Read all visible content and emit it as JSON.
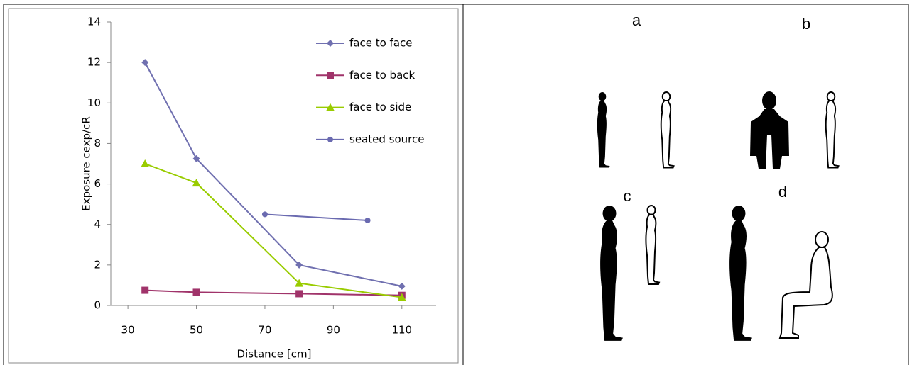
{
  "chart_data": {
    "type": "line",
    "xlabel": "Distance [cm]",
    "ylabel": "Exposure cexp/cR",
    "xlim": [
      25,
      120
    ],
    "xticks": [
      30,
      50,
      70,
      90,
      110
    ],
    "ylim": [
      0,
      14
    ],
    "yticks": [
      0,
      2,
      4,
      6,
      8,
      10,
      12,
      14
    ],
    "legend": "upper right",
    "series": [
      {
        "name": "face to face",
        "color": "#7070b0",
        "marker": "diamond",
        "x": [
          35,
          50,
          80,
          110
        ],
        "values": [
          12,
          7.25,
          2,
          0.95
        ]
      },
      {
        "name": "face to back",
        "color": "#a0336a",
        "marker": "square",
        "x": [
          35,
          50,
          80,
          110
        ],
        "values": [
          0.75,
          0.65,
          0.58,
          0.5
        ]
      },
      {
        "name": "face to side",
        "color": "#99cc00",
        "marker": "triangle",
        "x": [
          35,
          50,
          80,
          110
        ],
        "values": [
          7,
          6.05,
          1.1,
          0.4
        ]
      },
      {
        "name": "seated source",
        "color": "#6a6ab0",
        "marker": "circle",
        "x": [
          70,
          100
        ],
        "values": [
          4.5,
          4.2
        ]
      }
    ]
  },
  "panels": [
    "a",
    "b",
    "c",
    "d"
  ]
}
